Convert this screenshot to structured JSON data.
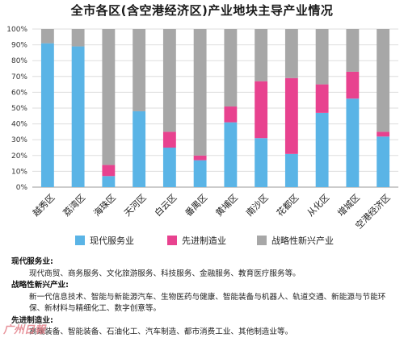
{
  "title": "全市各区(含空港经济区)产业地块主导产业情况",
  "colors": {
    "modern_service": "#5ab4e6",
    "advanced_manufacturing": "#e8428f",
    "emerging": "#a7a7a7",
    "grid": "#dddddd"
  },
  "chart_data": {
    "type": "bar",
    "stacked": true,
    "title": "全市各区(含空港经济区)产业地块主导产业情况",
    "categories": [
      "越秀区",
      "荔湾区",
      "海珠区",
      "天河区",
      "白云区",
      "番禺区",
      "黄埔区",
      "南沙区",
      "花都区",
      "从化区",
      "增城区",
      "空港经济区"
    ],
    "y_ticks": [
      "0%",
      "10%",
      "20%",
      "30%",
      "40%",
      "50%",
      "60%",
      "70%",
      "80%",
      "90%",
      "100%"
    ],
    "ylim": [
      0,
      100
    ],
    "grid": true,
    "legend_position": "bottom",
    "series": [
      {
        "name": "现代服务业",
        "color": "#5ab4e6",
        "values": [
          91,
          89,
          7,
          48,
          25,
          17,
          41,
          31,
          21,
          47,
          56,
          32
        ]
      },
      {
        "name": "先进制造业",
        "color": "#e8428f",
        "values": [
          0,
          0,
          7,
          0,
          10,
          3,
          10,
          36,
          48,
          18,
          17,
          3
        ]
      },
      {
        "name": "战略性新兴产业",
        "color": "#a7a7a7",
        "values": [
          9,
          11,
          86,
          52,
          65,
          80,
          49,
          33,
          31,
          35,
          27,
          65
        ]
      }
    ]
  },
  "notes": [
    {
      "heading": "现代服务业:",
      "body": "现代商贸、商务服务、文化旅游服务、科技服务、金融服务、教育医疗服务等。"
    },
    {
      "heading": "战略性新兴产业:",
      "body": "新一代信息技术、智能与新能源汽车、生物医药与健康、智能装备与机器人、轨道交通、新能源与节能环保、新材料与精细化工、数字创意等。"
    },
    {
      "heading": "先进制造业:",
      "body": "高端装备、智能装备、石油化工、汽车制造、都市消费工业、其他制造业等。"
    }
  ]
}
